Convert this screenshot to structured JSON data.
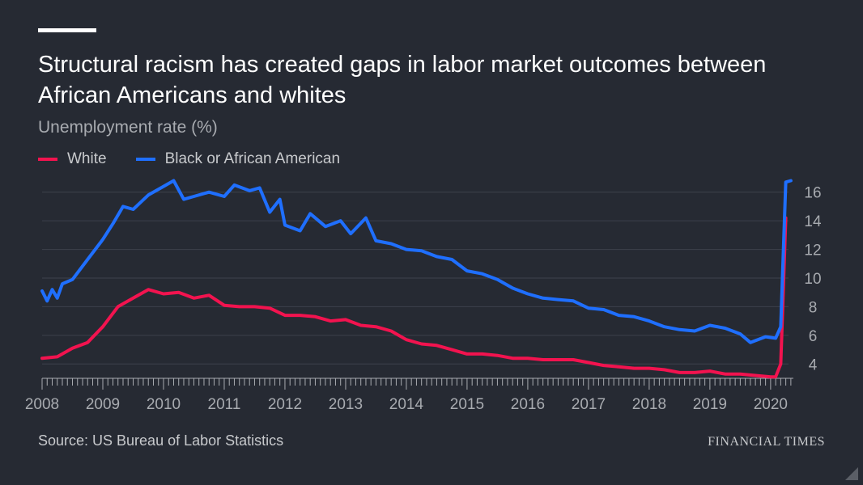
{
  "header": {
    "title": "Structural racism has created gaps in labor market outcomes between African Americans and whites",
    "subtitle": "Unemployment rate (%)"
  },
  "footer": {
    "source": "Source: US Bureau of Labor Statistics",
    "brand": "FINANCIAL TIMES"
  },
  "chart_data": {
    "type": "line",
    "title": "Structural racism has created gaps in labor market outcomes between African Americans and whites",
    "ylabel": "Unemployment rate (%)",
    "xlabel": "",
    "x_range": [
      "2008-01",
      "2020-05"
    ],
    "ylim": [
      3,
      17
    ],
    "y_ticks": [
      4,
      6,
      8,
      10,
      12,
      14,
      16
    ],
    "x_ticks": [
      "2008",
      "2009",
      "2010",
      "2011",
      "2012",
      "2013",
      "2014",
      "2015",
      "2016",
      "2017",
      "2018",
      "2019",
      "2020"
    ],
    "grid": true,
    "legend_position": "top-left",
    "colors": {
      "background": "#262a33",
      "grid": "#3d424c",
      "axis": "#a8abb0"
    },
    "series": [
      {
        "name": "White",
        "color": "#f2134f",
        "points": [
          [
            "2008-01",
            4.4
          ],
          [
            "2008-04",
            4.5
          ],
          [
            "2008-07",
            5.1
          ],
          [
            "2008-10",
            5.5
          ],
          [
            "2009-01",
            6.6
          ],
          [
            "2009-04",
            8.0
          ],
          [
            "2009-07",
            8.6
          ],
          [
            "2009-10",
            9.2
          ],
          [
            "2010-01",
            8.9
          ],
          [
            "2010-04",
            9.0
          ],
          [
            "2010-07",
            8.6
          ],
          [
            "2010-10",
            8.8
          ],
          [
            "2011-01",
            8.1
          ],
          [
            "2011-04",
            8.0
          ],
          [
            "2011-07",
            8.0
          ],
          [
            "2011-10",
            7.9
          ],
          [
            "2012-01",
            7.4
          ],
          [
            "2012-04",
            7.4
          ],
          [
            "2012-07",
            7.3
          ],
          [
            "2012-10",
            7.0
          ],
          [
            "2013-01",
            7.1
          ],
          [
            "2013-04",
            6.7
          ],
          [
            "2013-07",
            6.6
          ],
          [
            "2013-10",
            6.3
          ],
          [
            "2014-01",
            5.7
          ],
          [
            "2014-04",
            5.4
          ],
          [
            "2014-07",
            5.3
          ],
          [
            "2014-10",
            5.0
          ],
          [
            "2015-01",
            4.7
          ],
          [
            "2015-04",
            4.7
          ],
          [
            "2015-07",
            4.6
          ],
          [
            "2015-10",
            4.4
          ],
          [
            "2016-01",
            4.4
          ],
          [
            "2016-04",
            4.3
          ],
          [
            "2016-07",
            4.3
          ],
          [
            "2016-10",
            4.3
          ],
          [
            "2017-01",
            4.1
          ],
          [
            "2017-04",
            3.9
          ],
          [
            "2017-07",
            3.8
          ],
          [
            "2017-10",
            3.7
          ],
          [
            "2018-01",
            3.7
          ],
          [
            "2018-04",
            3.6
          ],
          [
            "2018-07",
            3.4
          ],
          [
            "2018-10",
            3.4
          ],
          [
            "2019-01",
            3.5
          ],
          [
            "2019-04",
            3.3
          ],
          [
            "2019-07",
            3.3
          ],
          [
            "2019-10",
            3.2
          ],
          [
            "2020-01",
            3.1
          ],
          [
            "2020-02",
            3.1
          ],
          [
            "2020-03",
            4.0
          ],
          [
            "2020-04",
            14.2
          ]
        ]
      },
      {
        "name": "Black or African American",
        "color": "#1f6fff",
        "points": [
          [
            "2008-01",
            9.1
          ],
          [
            "2008-02",
            8.4
          ],
          [
            "2008-03",
            9.2
          ],
          [
            "2008-04",
            8.6
          ],
          [
            "2008-05",
            9.6
          ],
          [
            "2008-07",
            9.9
          ],
          [
            "2008-10",
            11.3
          ],
          [
            "2009-01",
            12.7
          ],
          [
            "2009-03",
            13.8
          ],
          [
            "2009-05",
            15.0
          ],
          [
            "2009-07",
            14.8
          ],
          [
            "2009-10",
            15.8
          ],
          [
            "2010-01",
            16.4
          ],
          [
            "2010-03",
            16.8
          ],
          [
            "2010-05",
            15.5
          ],
          [
            "2010-07",
            15.7
          ],
          [
            "2010-10",
            16.0
          ],
          [
            "2011-01",
            15.7
          ],
          [
            "2011-03",
            16.5
          ],
          [
            "2011-06",
            16.1
          ],
          [
            "2011-08",
            16.3
          ],
          [
            "2011-10",
            14.6
          ],
          [
            "2011-12",
            15.5
          ],
          [
            "2012-01",
            13.7
          ],
          [
            "2012-04",
            13.3
          ],
          [
            "2012-06",
            14.5
          ],
          [
            "2012-09",
            13.6
          ],
          [
            "2012-12",
            14.0
          ],
          [
            "2013-02",
            13.1
          ],
          [
            "2013-05",
            14.2
          ],
          [
            "2013-07",
            12.6
          ],
          [
            "2013-10",
            12.4
          ],
          [
            "2014-01",
            12.0
          ],
          [
            "2014-04",
            11.9
          ],
          [
            "2014-07",
            11.5
          ],
          [
            "2014-10",
            11.3
          ],
          [
            "2015-01",
            10.5
          ],
          [
            "2015-04",
            10.3
          ],
          [
            "2015-07",
            9.9
          ],
          [
            "2015-10",
            9.3
          ],
          [
            "2016-01",
            8.9
          ],
          [
            "2016-04",
            8.6
          ],
          [
            "2016-07",
            8.5
          ],
          [
            "2016-10",
            8.4
          ],
          [
            "2017-01",
            7.9
          ],
          [
            "2017-04",
            7.8
          ],
          [
            "2017-07",
            7.4
          ],
          [
            "2017-10",
            7.3
          ],
          [
            "2018-01",
            7.0
          ],
          [
            "2018-04",
            6.6
          ],
          [
            "2018-07",
            6.4
          ],
          [
            "2018-10",
            6.3
          ],
          [
            "2019-01",
            6.7
          ],
          [
            "2019-04",
            6.5
          ],
          [
            "2019-07",
            6.1
          ],
          [
            "2019-09",
            5.5
          ],
          [
            "2019-12",
            5.9
          ],
          [
            "2020-02",
            5.8
          ],
          [
            "2020-03",
            6.6
          ],
          [
            "2020-04",
            16.7
          ],
          [
            "2020-05",
            16.8
          ]
        ]
      }
    ]
  }
}
